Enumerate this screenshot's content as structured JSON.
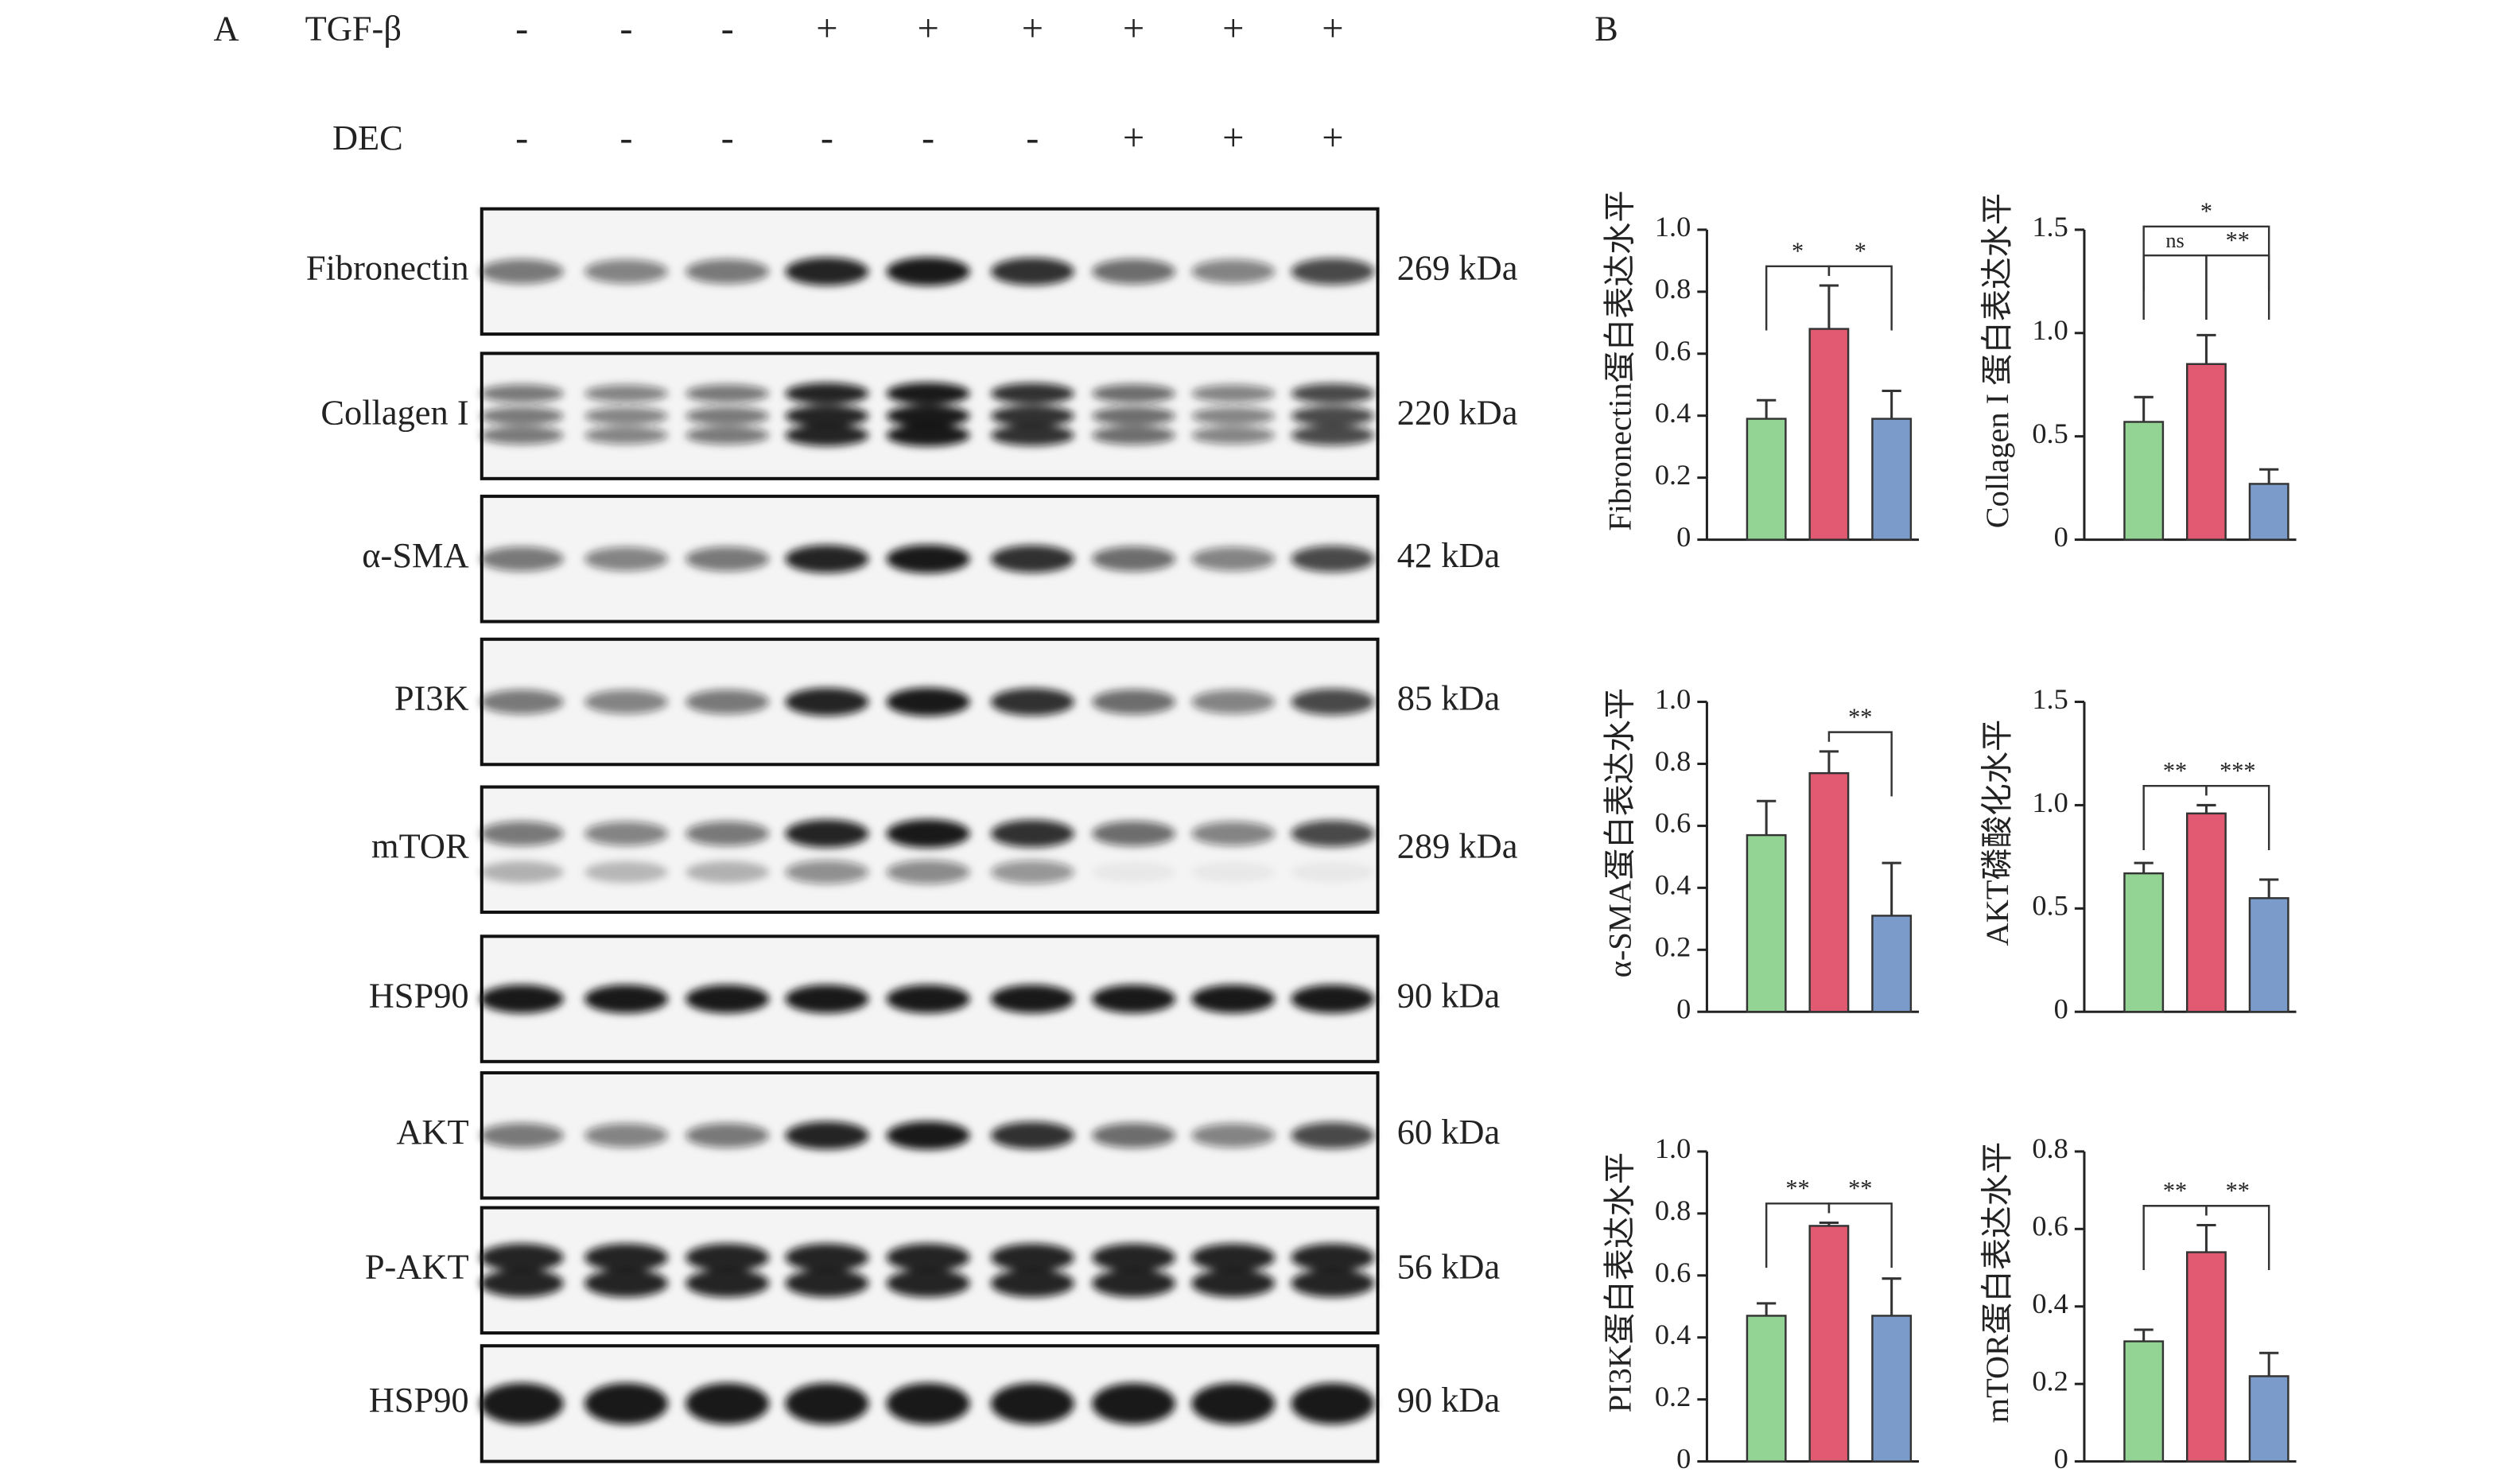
{
  "panel_a": {
    "label": "A",
    "rows": [
      {
        "label": "TGF-β",
        "marks": [
          "-",
          "-",
          "-",
          "+",
          "+",
          "+",
          "+",
          "+",
          "+"
        ]
      },
      {
        "label": "DEC",
        "marks": [
          "-",
          "-",
          "-",
          "-",
          "-",
          "-",
          "+",
          "+",
          "+"
        ]
      }
    ],
    "blots": [
      {
        "name": "Fibronectin",
        "size": "269 kDa"
      },
      {
        "name": "Collagen I",
        "size": "220 kDa"
      },
      {
        "name": "α-SMA",
        "size": "42 kDa"
      },
      {
        "name": "PI3K",
        "size": "85 kDa"
      },
      {
        "name": "mTOR",
        "size": "289 kDa"
      },
      {
        "name": "HSP90",
        "size": "90 kDa"
      },
      {
        "name": "AKT",
        "size": "60 kDa"
      },
      {
        "name": "P-AKT",
        "size": "56 kDa"
      },
      {
        "name": "HSP90",
        "size": "90 kDa"
      }
    ]
  },
  "panel_b": {
    "label": "B"
  },
  "chart_data": [
    {
      "type": "bar",
      "ylabel": "Fibronectin蛋白表达水平",
      "categories": [
        null,
        null,
        null
      ],
      "values": [
        0.39,
        0.68,
        0.39
      ],
      "errors": [
        0.06,
        0.14,
        0.09
      ],
      "colors": [
        "#93d393",
        "#e15a72",
        "#7b9bcb"
      ],
      "ylim": [
        0,
        1
      ],
      "yticks": [
        0,
        0.2,
        0.4,
        0.6,
        0.8,
        {
          "value": 1,
          "label": "1.0"
        }
      ],
      "annotations": [
        {
          "between": [
            0,
            1
          ],
          "text": "*"
        },
        {
          "between": [
            1,
            2
          ],
          "text": "*"
        }
      ]
    },
    {
      "type": "bar",
      "ylabel": "Collagen I 蛋白表达水平",
      "categories": [
        null,
        null,
        null
      ],
      "values": [
        0.57,
        0.85,
        0.27
      ],
      "errors": [
        0.12,
        0.14,
        0.07
      ],
      "colors": [
        "#93d393",
        "#e15a72",
        "#7b9bcb"
      ],
      "ylim": [
        0,
        1.5
      ],
      "yticks": [
        0,
        0.5,
        {
          "value": 1,
          "label": "1.0"
        },
        1.5
      ],
      "annotations": [
        {
          "between": [
            0,
            1
          ],
          "text": "ns"
        },
        {
          "between": [
            1,
            2
          ],
          "text": "**"
        },
        {
          "between": [
            0,
            2
          ],
          "text": "*"
        }
      ]
    },
    {
      "type": "bar",
      "ylabel": "α-SMA蛋白表达水平",
      "categories": [
        null,
        null,
        null
      ],
      "values": [
        0.57,
        0.77,
        0.31
      ],
      "errors": [
        0.11,
        0.07,
        0.17
      ],
      "colors": [
        "#93d393",
        "#e15a72",
        "#7b9bcb"
      ],
      "ylim": [
        0,
        1
      ],
      "yticks": [
        0,
        0.2,
        0.4,
        0.6,
        0.8,
        {
          "value": 1,
          "label": "1.0"
        }
      ],
      "annotations": [
        {
          "between": [
            1,
            2
          ],
          "text": "**"
        }
      ]
    },
    {
      "type": "bar",
      "ylabel": "AKT磷酸化水平",
      "categories": [
        null,
        null,
        null
      ],
      "values": [
        0.67,
        0.96,
        0.55
      ],
      "errors": [
        0.05,
        0.04,
        0.09
      ],
      "colors": [
        "#93d393",
        "#e15a72",
        "#7b9bcb"
      ],
      "ylim": [
        0,
        1.5
      ],
      "yticks": [
        0,
        0.5,
        {
          "value": 1,
          "label": "1.0"
        },
        1.5
      ],
      "annotations": [
        {
          "between": [
            0,
            1
          ],
          "text": "**"
        },
        {
          "between": [
            1,
            2
          ],
          "text": "***"
        }
      ]
    },
    {
      "type": "bar",
      "ylabel": "PI3K蛋白表达水平",
      "categories": [
        null,
        null,
        null
      ],
      "values": [
        0.47,
        0.76,
        0.47
      ],
      "errors": [
        0.04,
        0.01,
        0.12
      ],
      "colors": [
        "#93d393",
        "#e15a72",
        "#7b9bcb"
      ],
      "ylim": [
        0,
        1
      ],
      "yticks": [
        0,
        0.2,
        0.4,
        0.6,
        0.8,
        {
          "value": 1,
          "label": "1.0"
        }
      ],
      "annotations": [
        {
          "between": [
            0,
            1
          ],
          "text": "**"
        },
        {
          "between": [
            1,
            2
          ],
          "text": "**"
        }
      ]
    },
    {
      "type": "bar",
      "ylabel": "mTOR蛋白表达水平",
      "categories": [
        null,
        null,
        null
      ],
      "values": [
        0.31,
        0.54,
        0.22
      ],
      "errors": [
        0.03,
        0.07,
        0.06
      ],
      "colors": [
        "#93d393",
        "#e15a72",
        "#7b9bcb"
      ],
      "ylim": [
        0,
        0.8
      ],
      "yticks": [
        0,
        0.2,
        0.4,
        0.6,
        0.8
      ],
      "annotations": [
        {
          "between": [
            0,
            1
          ],
          "text": "**"
        },
        {
          "between": [
            1,
            2
          ],
          "text": "**"
        }
      ]
    }
  ]
}
